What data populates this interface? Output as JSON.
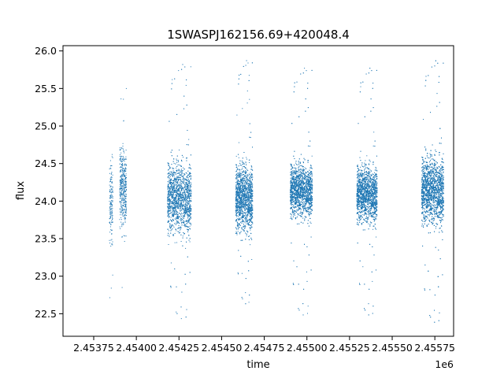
{
  "chart_data": {
    "type": "scatter",
    "title": "1SWASPJ162156.69+420048.4",
    "xlabel": "time",
    "ylabel": "flux",
    "x_offset_label": "1e6",
    "xlim": [
      2.45357,
      2.45586
    ],
    "ylim": [
      22.2,
      26.07
    ],
    "x_ticks": [
      2.45375,
      2.454,
      2.45425,
      2.4545,
      2.45475,
      2.455,
      2.45525,
      2.4555,
      2.45575
    ],
    "x_tick_labels": [
      "2.45375",
      "2.45400",
      "2.45425",
      "2.45450",
      "2.45475",
      "2.45500",
      "2.45525",
      "2.45550",
      "2.45575"
    ],
    "y_ticks": [
      22.5,
      23.0,
      23.5,
      24.0,
      24.5,
      25.0,
      25.5,
      26.0
    ],
    "y_tick_labels": [
      "22.5",
      "23.0",
      "23.5",
      "24.0",
      "24.5",
      "25.0",
      "25.5",
      "26.0"
    ],
    "grid": false,
    "marker_color": "#1f77b4",
    "observing_seasons": [
      {
        "x_start": 2.45384,
        "x_end": 2.45386,
        "flux_center": 24.0,
        "flux_spread": 0.45,
        "flux_min": 22.55,
        "flux_max": 25.7,
        "points": 160
      },
      {
        "x_start": 2.4539,
        "x_end": 2.45394,
        "flux_center": 24.2,
        "flux_spread": 0.45,
        "flux_min": 22.75,
        "flux_max": 25.55,
        "points": 420
      },
      {
        "x_start": 2.45418,
        "x_end": 2.45432,
        "flux_center": 24.05,
        "flux_spread": 0.4,
        "flux_min": 22.4,
        "flux_max": 25.85,
        "points": 2300
      },
      {
        "x_start": 2.45458,
        "x_end": 2.45468,
        "flux_center": 24.05,
        "flux_spread": 0.38,
        "flux_min": 22.6,
        "flux_max": 25.9,
        "points": 2100
      },
      {
        "x_start": 2.4549,
        "x_end": 2.45503,
        "flux_center": 24.15,
        "flux_spread": 0.3,
        "flux_min": 22.45,
        "flux_max": 25.8,
        "points": 2600
      },
      {
        "x_start": 2.45529,
        "x_end": 2.45541,
        "flux_center": 24.1,
        "flux_spread": 0.32,
        "flux_min": 22.45,
        "flux_max": 25.8,
        "points": 2500
      },
      {
        "x_start": 2.45567,
        "x_end": 2.4558,
        "flux_center": 24.15,
        "flux_spread": 0.38,
        "flux_min": 22.35,
        "flux_max": 25.9,
        "points": 3000
      }
    ]
  }
}
